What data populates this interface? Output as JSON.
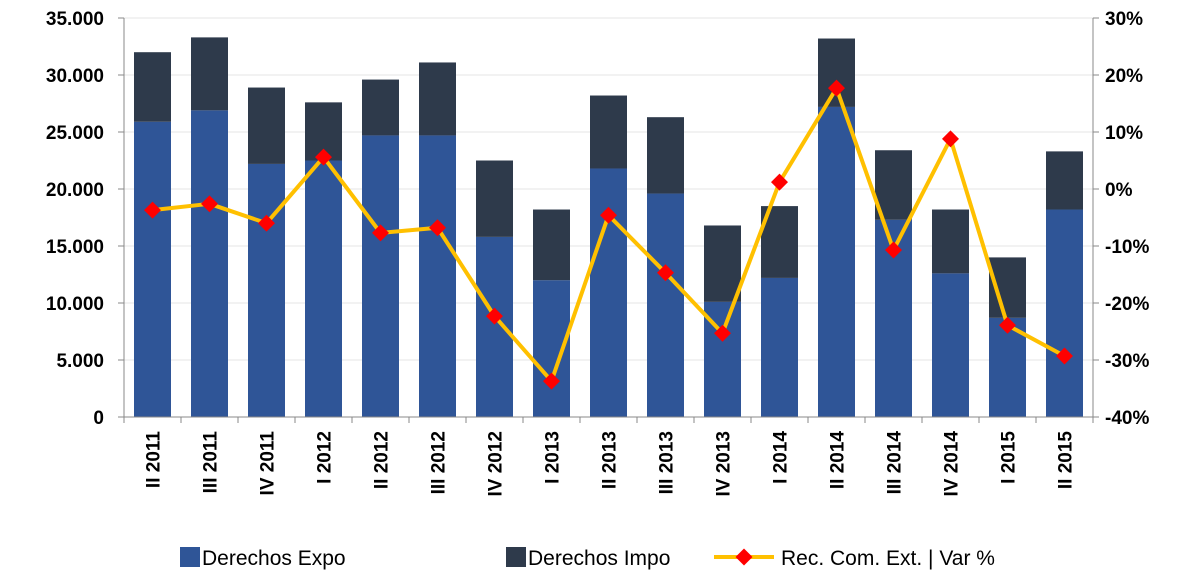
{
  "chart_data": {
    "type": "bar-line",
    "categories": [
      "II 2011",
      "III 2011",
      "IV 2011",
      "I 2012",
      "II 2012",
      "III 2012",
      "IV 2012",
      "I 2013",
      "II 2013",
      "III 2013",
      "IV 2013",
      "I 2014",
      "II 2014",
      "III 2014",
      "IV 2014",
      "I 2015",
      "II 2015"
    ],
    "series": [
      {
        "name": "Derechos Expo",
        "color": "#2f5597",
        "type": "bar",
        "values": [
          25900,
          26900,
          22200,
          22500,
          24700,
          24700,
          15800,
          12000,
          21800,
          19600,
          10100,
          12200,
          27200,
          17300,
          12600,
          8700,
          18200
        ]
      },
      {
        "name": "Derechos Impo",
        "color": "#2e3a4b",
        "type": "bar",
        "values": [
          6100,
          6400,
          6700,
          5100,
          4900,
          6400,
          6700,
          6200,
          6400,
          6700,
          6700,
          6300,
          6000,
          6100,
          5600,
          5300,
          5100
        ]
      },
      {
        "name": "Rec. Com. Ext. | Var %",
        "color": "#ffc000",
        "marker_color": "#ff0000",
        "type": "line",
        "axis": "y2",
        "values": [
          -3.7,
          -2.6,
          -6.0,
          5.6,
          -7.7,
          -6.8,
          -22.3,
          -33.7,
          -4.6,
          -14.7,
          -25.3,
          1.2,
          17.7,
          -10.7,
          8.8,
          -23.9,
          -29.3
        ]
      }
    ],
    "ylim": [
      0,
      35000
    ],
    "yticks": [
      0,
      {
        "value": 5000,
        "label": "5.000"
      },
      {
        "value": 10000,
        "label": "10.000"
      },
      {
        "value": 15000,
        "label": "15.000"
      },
      {
        "value": 20000,
        "label": "20.000"
      },
      {
        "value": 25000,
        "label": "25.000"
      },
      {
        "value": 30000,
        "label": "30.000"
      },
      {
        "value": 35000,
        "label": "35.000"
      }
    ],
    "y2lim": [
      -40,
      30
    ],
    "y2ticks": [
      {
        "value": -40,
        "label": "-40%"
      },
      {
        "value": -30,
        "label": "-30%"
      },
      {
        "value": -20,
        "label": "-20%"
      },
      {
        "value": -10,
        "label": "-10%"
      },
      {
        "value": 0,
        "label": "0%"
      },
      {
        "value": 10,
        "label": "10%"
      },
      {
        "value": 20,
        "label": "20%"
      },
      {
        "value": 30,
        "label": "30%"
      }
    ],
    "grid": true,
    "legend": "bottom"
  }
}
